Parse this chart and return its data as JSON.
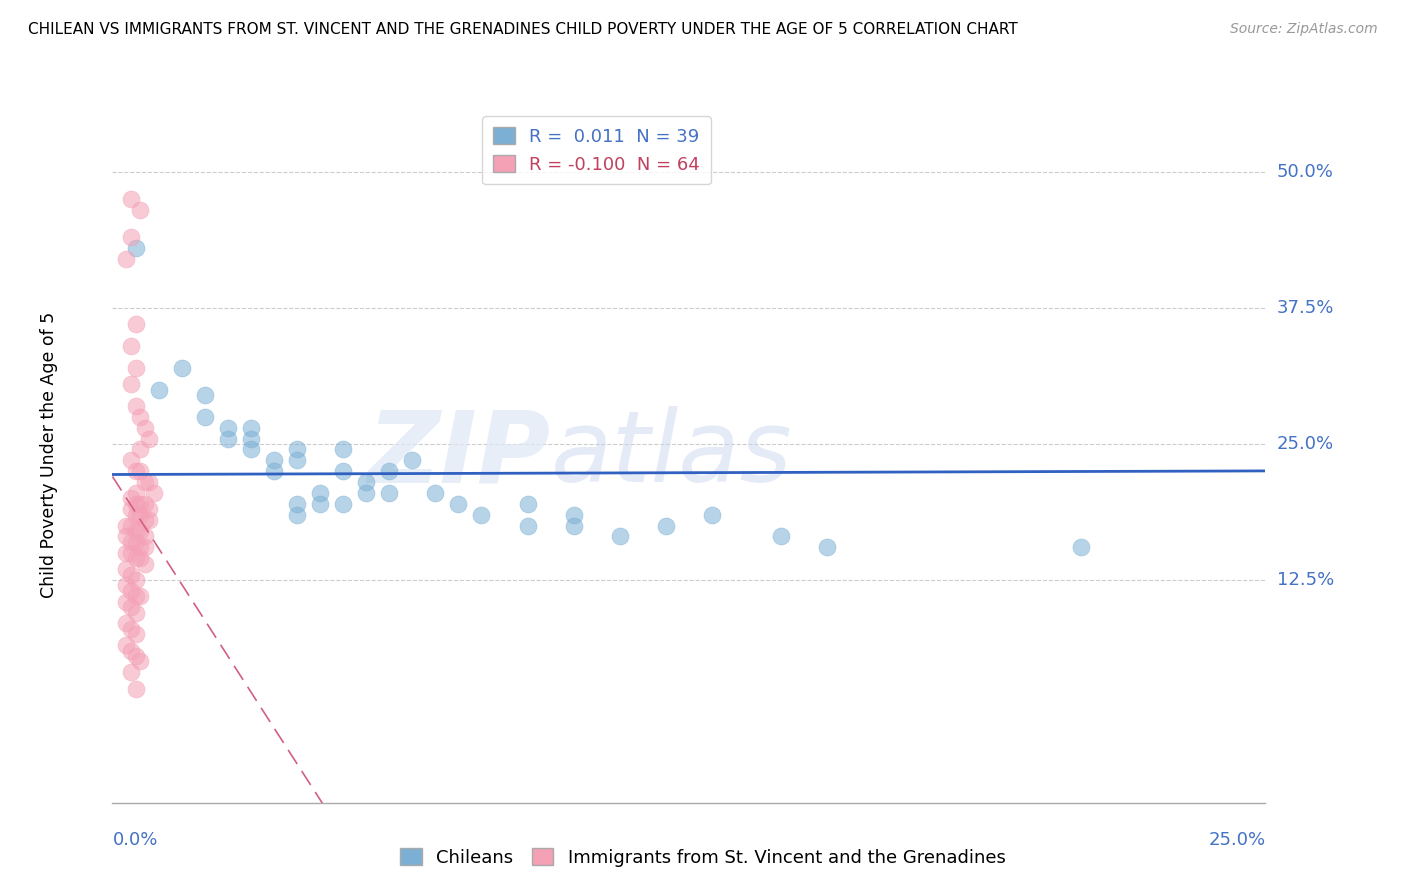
{
  "title": "CHILEAN VS IMMIGRANTS FROM ST. VINCENT AND THE GRENADINES CHILD POVERTY UNDER THE AGE OF 5 CORRELATION CHART",
  "source": "Source: ZipAtlas.com",
  "ylabel": "Child Poverty Under the Age of 5",
  "ytick_labels": [
    "50.0%",
    "37.5%",
    "25.0%",
    "12.5%"
  ],
  "ytick_values": [
    0.5,
    0.375,
    0.25,
    0.125
  ],
  "xlim": [
    0.0,
    0.25
  ],
  "ylim": [
    -0.08,
    0.56
  ],
  "blue_color": "#7bafd4",
  "pink_color": "#f4a0b5",
  "blue_line_color": "#3060c0",
  "pink_line_color": "#d06080",
  "blue_R": 0.011,
  "pink_R": -0.1,
  "blue_N": 39,
  "pink_N": 64,
  "blue_scatter": [
    [
      0.005,
      0.43
    ],
    [
      0.01,
      0.3
    ],
    [
      0.015,
      0.32
    ],
    [
      0.02,
      0.295
    ],
    [
      0.02,
      0.275
    ],
    [
      0.025,
      0.265
    ],
    [
      0.025,
      0.255
    ],
    [
      0.03,
      0.265
    ],
    [
      0.03,
      0.255
    ],
    [
      0.03,
      0.245
    ],
    [
      0.035,
      0.235
    ],
    [
      0.035,
      0.225
    ],
    [
      0.04,
      0.245
    ],
    [
      0.04,
      0.235
    ],
    [
      0.04,
      0.195
    ],
    [
      0.04,
      0.185
    ],
    [
      0.045,
      0.205
    ],
    [
      0.045,
      0.195
    ],
    [
      0.05,
      0.245
    ],
    [
      0.05,
      0.225
    ],
    [
      0.05,
      0.195
    ],
    [
      0.055,
      0.215
    ],
    [
      0.055,
      0.205
    ],
    [
      0.06,
      0.225
    ],
    [
      0.06,
      0.205
    ],
    [
      0.065,
      0.235
    ],
    [
      0.07,
      0.205
    ],
    [
      0.075,
      0.195
    ],
    [
      0.08,
      0.185
    ],
    [
      0.09,
      0.195
    ],
    [
      0.09,
      0.175
    ],
    [
      0.1,
      0.185
    ],
    [
      0.1,
      0.175
    ],
    [
      0.11,
      0.165
    ],
    [
      0.12,
      0.175
    ],
    [
      0.13,
      0.185
    ],
    [
      0.145,
      0.165
    ],
    [
      0.155,
      0.155
    ],
    [
      0.21,
      0.155
    ]
  ],
  "pink_scatter": [
    [
      0.004,
      0.475
    ],
    [
      0.006,
      0.465
    ],
    [
      0.004,
      0.44
    ],
    [
      0.003,
      0.42
    ],
    [
      0.005,
      0.36
    ],
    [
      0.004,
      0.34
    ],
    [
      0.005,
      0.32
    ],
    [
      0.004,
      0.305
    ],
    [
      0.005,
      0.285
    ],
    [
      0.006,
      0.275
    ],
    [
      0.007,
      0.265
    ],
    [
      0.008,
      0.255
    ],
    [
      0.006,
      0.245
    ],
    [
      0.004,
      0.235
    ],
    [
      0.005,
      0.225
    ],
    [
      0.006,
      0.225
    ],
    [
      0.007,
      0.215
    ],
    [
      0.008,
      0.215
    ],
    [
      0.009,
      0.205
    ],
    [
      0.005,
      0.205
    ],
    [
      0.004,
      0.2
    ],
    [
      0.005,
      0.195
    ],
    [
      0.006,
      0.195
    ],
    [
      0.007,
      0.195
    ],
    [
      0.008,
      0.19
    ],
    [
      0.004,
      0.19
    ],
    [
      0.005,
      0.185
    ],
    [
      0.006,
      0.185
    ],
    [
      0.007,
      0.18
    ],
    [
      0.008,
      0.18
    ],
    [
      0.003,
      0.175
    ],
    [
      0.004,
      0.175
    ],
    [
      0.005,
      0.17
    ],
    [
      0.006,
      0.17
    ],
    [
      0.007,
      0.165
    ],
    [
      0.003,
      0.165
    ],
    [
      0.004,
      0.16
    ],
    [
      0.005,
      0.16
    ],
    [
      0.006,
      0.155
    ],
    [
      0.007,
      0.155
    ],
    [
      0.003,
      0.15
    ],
    [
      0.004,
      0.15
    ],
    [
      0.005,
      0.145
    ],
    [
      0.006,
      0.145
    ],
    [
      0.007,
      0.14
    ],
    [
      0.003,
      0.135
    ],
    [
      0.004,
      0.13
    ],
    [
      0.005,
      0.125
    ],
    [
      0.003,
      0.12
    ],
    [
      0.004,
      0.115
    ],
    [
      0.005,
      0.11
    ],
    [
      0.006,
      0.11
    ],
    [
      0.003,
      0.105
    ],
    [
      0.004,
      0.1
    ],
    [
      0.005,
      0.095
    ],
    [
      0.003,
      0.085
    ],
    [
      0.004,
      0.08
    ],
    [
      0.005,
      0.075
    ],
    [
      0.003,
      0.065
    ],
    [
      0.004,
      0.06
    ],
    [
      0.005,
      0.055
    ],
    [
      0.006,
      0.05
    ],
    [
      0.004,
      0.04
    ],
    [
      0.005,
      0.025
    ]
  ]
}
